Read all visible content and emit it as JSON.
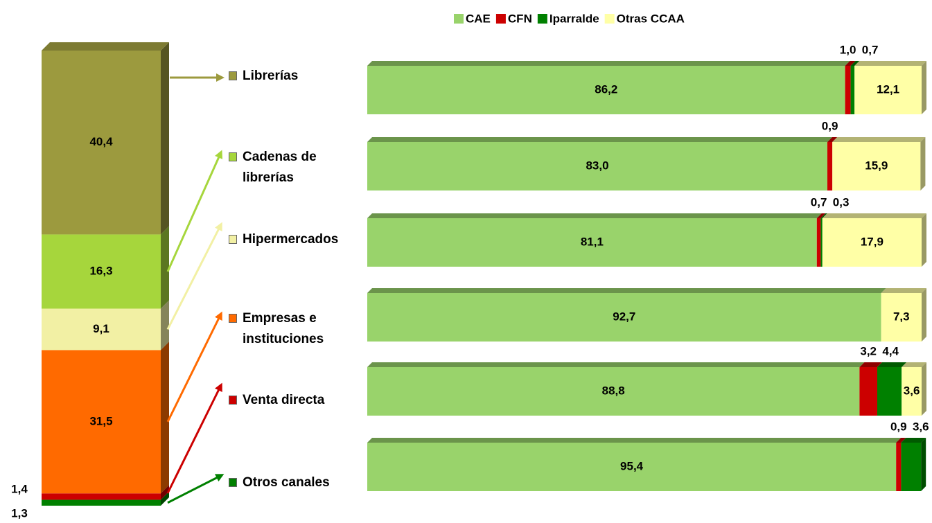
{
  "chart_data": [
    {
      "type": "stacked_column",
      "categories": [
        "Librerías",
        "Cadenas de librerías",
        "Hipermercados",
        "Empresas e instituciones",
        "Venta directa",
        "Otros canales"
      ],
      "values": [
        40.4,
        16.3,
        9.1,
        31.5,
        1.4,
        1.3
      ],
      "value_labels": [
        "40,4",
        "16,3",
        "9,1",
        "31,5",
        "1,4",
        "1,3"
      ],
      "colors": [
        "#9c9a3e",
        "#a6d63c",
        "#f2f0a4",
        "#ff6a00",
        "#cc0000",
        "#008000"
      ],
      "ylim": [
        0,
        100
      ]
    },
    {
      "type": "stacked_barh",
      "series": [
        {
          "name": "CAE",
          "color": "#99d36b",
          "values": [
            86.2,
            83.0,
            81.1,
            92.7,
            88.8,
            95.4
          ],
          "value_labels": [
            "86,2",
            "83,0",
            "81,1",
            "92,7",
            "88,8",
            "95,4"
          ]
        },
        {
          "name": "CFN",
          "color": "#cc0000",
          "values": [
            1.0,
            0.9,
            0.7,
            null,
            3.2,
            0.9
          ],
          "value_labels": [
            "1,0",
            "0,9",
            "0,7",
            null,
            "3,2",
            "0,9"
          ]
        },
        {
          "name": "Iparralde",
          "color": "#008000",
          "values": [
            0.7,
            null,
            0.3,
            null,
            4.4,
            3.6
          ],
          "value_labels": [
            "0,7",
            null,
            "0,3",
            null,
            "4,4",
            "3,6"
          ]
        },
        {
          "name": "Otras CCAA",
          "color": "#ffffa6",
          "values": [
            12.1,
            15.9,
            17.9,
            7.3,
            3.6,
            null
          ],
          "value_labels": [
            "12,1",
            "15,9",
            "17,9",
            "7,3",
            "3,6",
            null
          ]
        }
      ],
      "xlim": [
        0,
        100
      ]
    }
  ]
}
